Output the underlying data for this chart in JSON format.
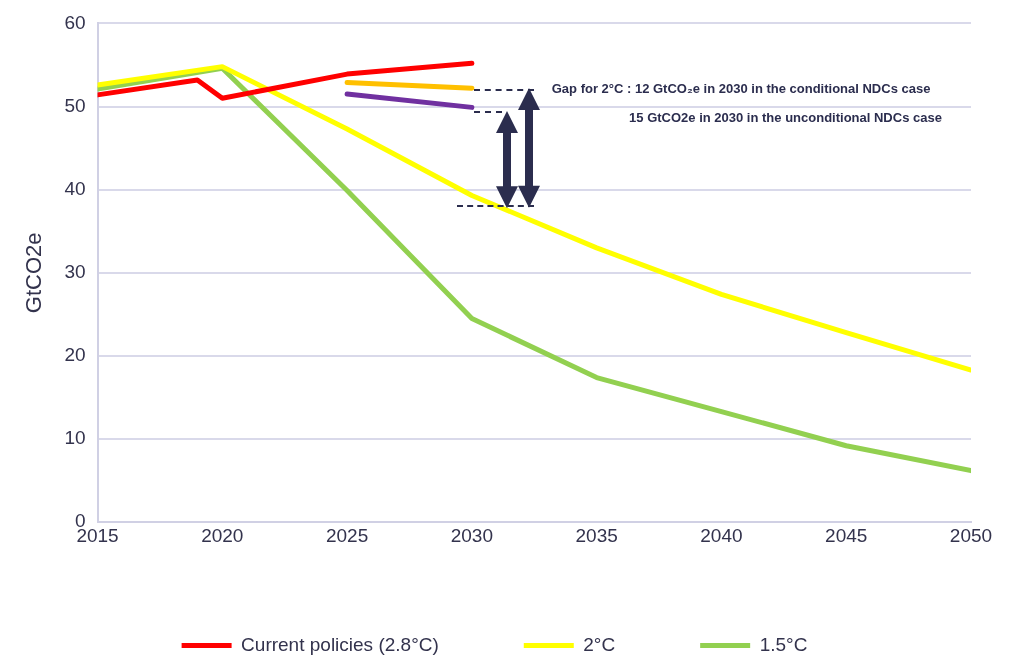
{
  "chart_data": {
    "type": "line",
    "ylabel": "GtCO2e",
    "series": [
      {
        "name": "Current policies (2.8°C)",
        "color": "#ff0000",
        "x": [
          2015,
          2019,
          2020,
          2025,
          2030
        ],
        "values": [
          51.4,
          53.2,
          51.0,
          53.9,
          55.2
        ]
      },
      {
        "name": "2°C",
        "color": "#ffff00",
        "x": [
          2015,
          2020,
          2025,
          2030,
          2035,
          2040,
          2045,
          2050
        ],
        "values": [
          52.6,
          54.8,
          47.3,
          39.3,
          33.0,
          27.4,
          22.8,
          18.3
        ]
      },
      {
        "name": "1.5°C",
        "color": "#92d050",
        "x": [
          2015,
          2020,
          2025,
          2030,
          2035,
          2040,
          2045,
          2050
        ],
        "values": [
          52.1,
          54.6,
          39.9,
          24.5,
          17.4,
          13.3,
          9.2,
          6.2
        ]
      },
      {
        "color": "#ffc000",
        "x": [
          2025,
          2030
        ],
        "values": [
          52.9,
          52.2
        ]
      },
      {
        "color": "#7030a0",
        "x": [
          2025,
          2030
        ],
        "values": [
          51.5,
          49.9
        ]
      }
    ],
    "xlim": [
      2015,
      2050
    ],
    "xticks": [
      2015,
      2020,
      2025,
      2030,
      2035,
      2040,
      2045,
      2050
    ],
    "ylim": [
      0,
      60
    ],
    "yticks": [
      0,
      10,
      20,
      30,
      40,
      50,
      60
    ],
    "grid": "y",
    "legend": "bottom",
    "marker": "none",
    "line_style": "solid",
    "annotations": [
      "Gap  for 2°C : 12 GtCO₂e in 2030 in the conditional NDCs case",
      "15 GtCO2e in 2030 in the unconditional NDCs case"
    ]
  }
}
